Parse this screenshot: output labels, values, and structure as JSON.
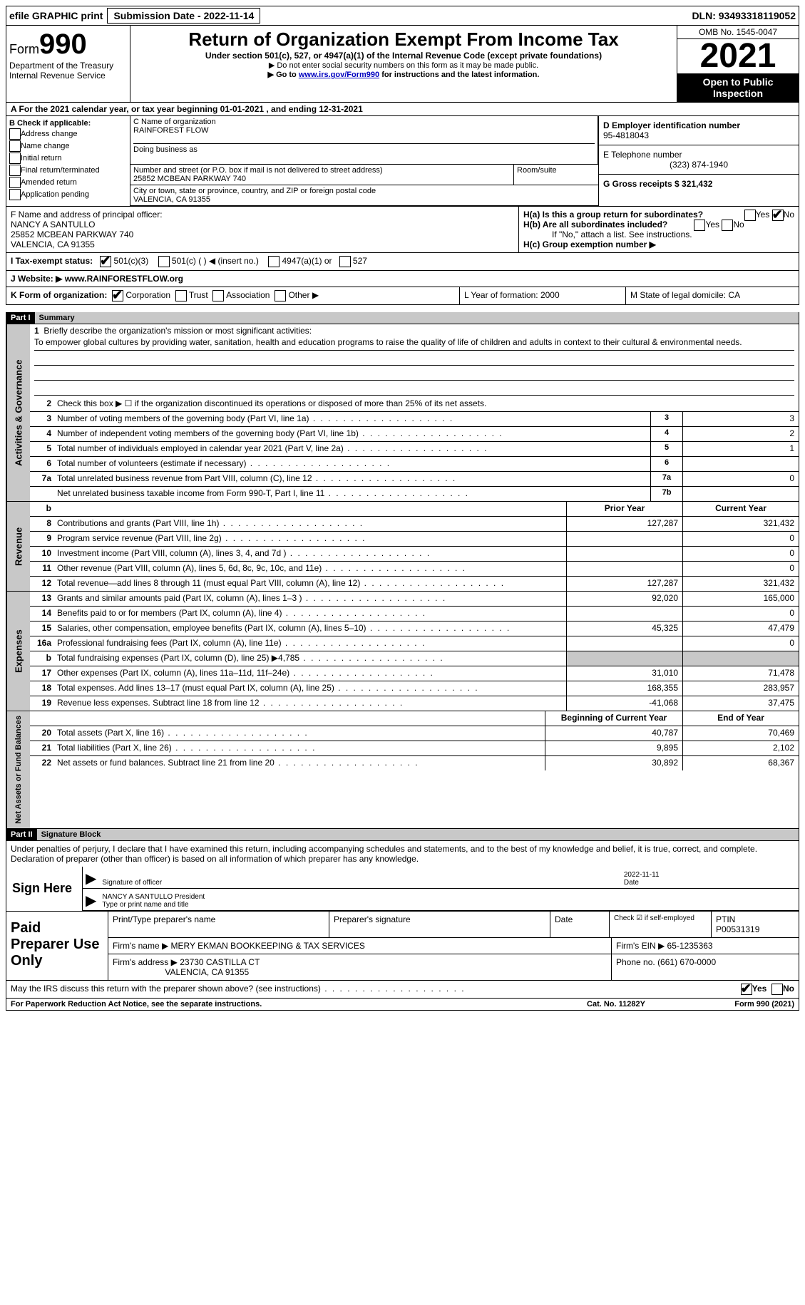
{
  "topbar": {
    "efile": "efile GRAPHIC print",
    "submission": "Submission Date - 2022-11-14",
    "dln": "DLN: 93493318119052"
  },
  "header": {
    "form_word": "Form",
    "form_num": "990",
    "dept": "Department of the Treasury Internal Revenue Service",
    "title": "Return of Organization Exempt From Income Tax",
    "subtitle": "Under section 501(c), 527, or 4947(a)(1) of the Internal Revenue Code (except private foundations)",
    "note1": "▶ Do not enter social security numbers on this form as it may be made public.",
    "note2_pre": "▶ Go to ",
    "note2_link": "www.irs.gov/Form990",
    "note2_post": " for instructions and the latest information.",
    "omb": "OMB No. 1545-0047",
    "year": "2021",
    "open": "Open to Public Inspection"
  },
  "calendar": "A For the 2021 calendar year, or tax year beginning 01-01-2021   , and ending 12-31-2021",
  "section_b": {
    "label": "B Check if applicable:",
    "opts": [
      "Address change",
      "Name change",
      "Initial return",
      "Final return/terminated",
      "Amended return",
      "Application pending"
    ],
    "c_label": "C Name of organization",
    "org": "RAINFOREST FLOW",
    "dba_label": "Doing business as",
    "street_label": "Number and street (or P.O. box if mail is not delivered to street address)",
    "street": "25852 MCBEAN PARKWAY 740",
    "room_label": "Room/suite",
    "city_label": "City or town, state or province, country, and ZIP or foreign postal code",
    "city": "VALENCIA, CA  91355",
    "d_label": "D Employer identification number",
    "ein": "95-4818043",
    "e_label": "E Telephone number",
    "phone": "(323) 874-1940",
    "g_label": "G Gross receipts $ 321,432"
  },
  "section_f": {
    "label": "F  Name and address of principal officer:",
    "name": "NANCY A SANTULLO",
    "addr1": "25852 MCBEAN PARKWAY 740",
    "addr2": "VALENCIA, CA  91355"
  },
  "section_h": {
    "ha": "H(a)  Is this a group return for subordinates?",
    "hb": "H(b)  Are all subordinates included?",
    "hb_note": "If \"No,\" attach a list. See instructions.",
    "hc": "H(c)  Group exemption number ▶",
    "yes": "Yes",
    "no": "No"
  },
  "tax_status": {
    "label": "I  Tax-exempt status:",
    "o1": "501(c)(3)",
    "o2": "501(c) (  ) ◀ (insert no.)",
    "o3": "4947(a)(1) or",
    "o4": "527"
  },
  "website": {
    "label": "J  Website: ▶",
    "val": "  www.RAINFORESTFLOW.org"
  },
  "klm": {
    "k": "K Form of organization:",
    "k1": "Corporation",
    "k2": "Trust",
    "k3": "Association",
    "k4": "Other ▶",
    "l": "L Year of formation: 2000",
    "m": "M State of legal domicile: CA"
  },
  "part1": {
    "hdr": "Part I",
    "title": "Summary"
  },
  "activities": {
    "side": "Activities & Governance",
    "q1": "Briefly describe the organization's mission or most significant activities:",
    "mission": "To empower global cultures by providing water, sanitation, health and education programs to raise the quality of life of children and adults in context to their cultural & environmental needs.",
    "q2": "Check this box ▶ ☐  if the organization discontinued its operations or disposed of more than 25% of its net assets.",
    "rows": [
      {
        "n": "3",
        "d": "Number of voting members of the governing body (Part VI, line 1a)",
        "b": "3",
        "v": "3"
      },
      {
        "n": "4",
        "d": "Number of independent voting members of the governing body (Part VI, line 1b)",
        "b": "4",
        "v": "2"
      },
      {
        "n": "5",
        "d": "Total number of individuals employed in calendar year 2021 (Part V, line 2a)",
        "b": "5",
        "v": "1"
      },
      {
        "n": "6",
        "d": "Total number of volunteers (estimate if necessary)",
        "b": "6",
        "v": ""
      },
      {
        "n": "7a",
        "d": "Total unrelated business revenue from Part VIII, column (C), line 12",
        "b": "7a",
        "v": "0"
      },
      {
        "n": "",
        "d": "Net unrelated business taxable income from Form 990-T, Part I, line 11",
        "b": "7b",
        "v": ""
      }
    ]
  },
  "revenue": {
    "side": "Revenue",
    "hdr_prior": "Prior Year",
    "hdr_curr": "Current Year",
    "rows": [
      {
        "n": "8",
        "d": "Contributions and grants (Part VIII, line 1h)",
        "p": "127,287",
        "c": "321,432"
      },
      {
        "n": "9",
        "d": "Program service revenue (Part VIII, line 2g)",
        "p": "",
        "c": "0"
      },
      {
        "n": "10",
        "d": "Investment income (Part VIII, column (A), lines 3, 4, and 7d )",
        "p": "",
        "c": "0"
      },
      {
        "n": "11",
        "d": "Other revenue (Part VIII, column (A), lines 5, 6d, 8c, 9c, 10c, and 11e)",
        "p": "",
        "c": "0"
      },
      {
        "n": "12",
        "d": "Total revenue—add lines 8 through 11 (must equal Part VIII, column (A), line 12)",
        "p": "127,287",
        "c": "321,432"
      }
    ]
  },
  "expenses": {
    "side": "Expenses",
    "rows": [
      {
        "n": "13",
        "d": "Grants and similar amounts paid (Part IX, column (A), lines 1–3 )",
        "p": "92,020",
        "c": "165,000"
      },
      {
        "n": "14",
        "d": "Benefits paid to or for members (Part IX, column (A), line 4)",
        "p": "",
        "c": "0"
      },
      {
        "n": "15",
        "d": "Salaries, other compensation, employee benefits (Part IX, column (A), lines 5–10)",
        "p": "45,325",
        "c": "47,479"
      },
      {
        "n": "16a",
        "d": "Professional fundraising fees (Part IX, column (A), line 11e)",
        "p": "",
        "c": "0"
      },
      {
        "n": "b",
        "d": "Total fundraising expenses (Part IX, column (D), line 25) ▶4,785",
        "p": "shade",
        "c": "shade"
      },
      {
        "n": "17",
        "d": "Other expenses (Part IX, column (A), lines 11a–11d, 11f–24e)",
        "p": "31,010",
        "c": "71,478"
      },
      {
        "n": "18",
        "d": "Total expenses. Add lines 13–17 (must equal Part IX, column (A), line 25)",
        "p": "168,355",
        "c": "283,957"
      },
      {
        "n": "19",
        "d": "Revenue less expenses. Subtract line 18 from line 12",
        "p": "-41,068",
        "c": "37,475"
      }
    ]
  },
  "netassets": {
    "side": "Net Assets or Fund Balances",
    "hdr_prior": "Beginning of Current Year",
    "hdr_curr": "End of Year",
    "rows": [
      {
        "n": "20",
        "d": "Total assets (Part X, line 16)",
        "p": "40,787",
        "c": "70,469"
      },
      {
        "n": "21",
        "d": "Total liabilities (Part X, line 26)",
        "p": "9,895",
        "c": "2,102"
      },
      {
        "n": "22",
        "d": "Net assets or fund balances. Subtract line 21 from line 20",
        "p": "30,892",
        "c": "68,367"
      }
    ]
  },
  "part2": {
    "hdr": "Part II",
    "title": "Signature Block"
  },
  "sig": {
    "penalty": "Under penalties of perjury, I declare that I have examined this return, including accompanying schedules and statements, and to the best of my knowledge and belief, it is true, correct, and complete. Declaration of preparer (other than officer) is based on all information of which preparer has any knowledge.",
    "sign_here": "Sign Here",
    "sig_officer": "Signature of officer",
    "date": "Date",
    "date_val": "2022-11-11",
    "name": "NANCY A SANTULLO  President",
    "name_label": "Type or print name and title"
  },
  "preparer": {
    "left": "Paid Preparer Use Only",
    "print_label": "Print/Type preparer's name",
    "sig_label": "Preparer's signature",
    "date_label": "Date",
    "check_label": "Check ☑ if self-employed",
    "ptin_label": "PTIN",
    "ptin": "P00531319",
    "firm_name_label": "Firm's name    ▶",
    "firm_name": "MERY EKMAN BOOKKEEPING & TAX SERVICES",
    "firm_ein_label": "Firm's EIN ▶",
    "firm_ein": "65-1235363",
    "firm_addr_label": "Firm's address ▶",
    "firm_addr1": "23730 CASTILLA CT",
    "firm_addr2": "VALENCIA, CA  91355",
    "phone_label": "Phone no.",
    "phone": "(661) 670-0000"
  },
  "discuss": "May the IRS discuss this return with the preparer shown above? (see instructions)",
  "footer": {
    "left": "For Paperwork Reduction Act Notice, see the separate instructions.",
    "mid": "Cat. No. 11282Y",
    "right": "Form 990 (2021)"
  }
}
